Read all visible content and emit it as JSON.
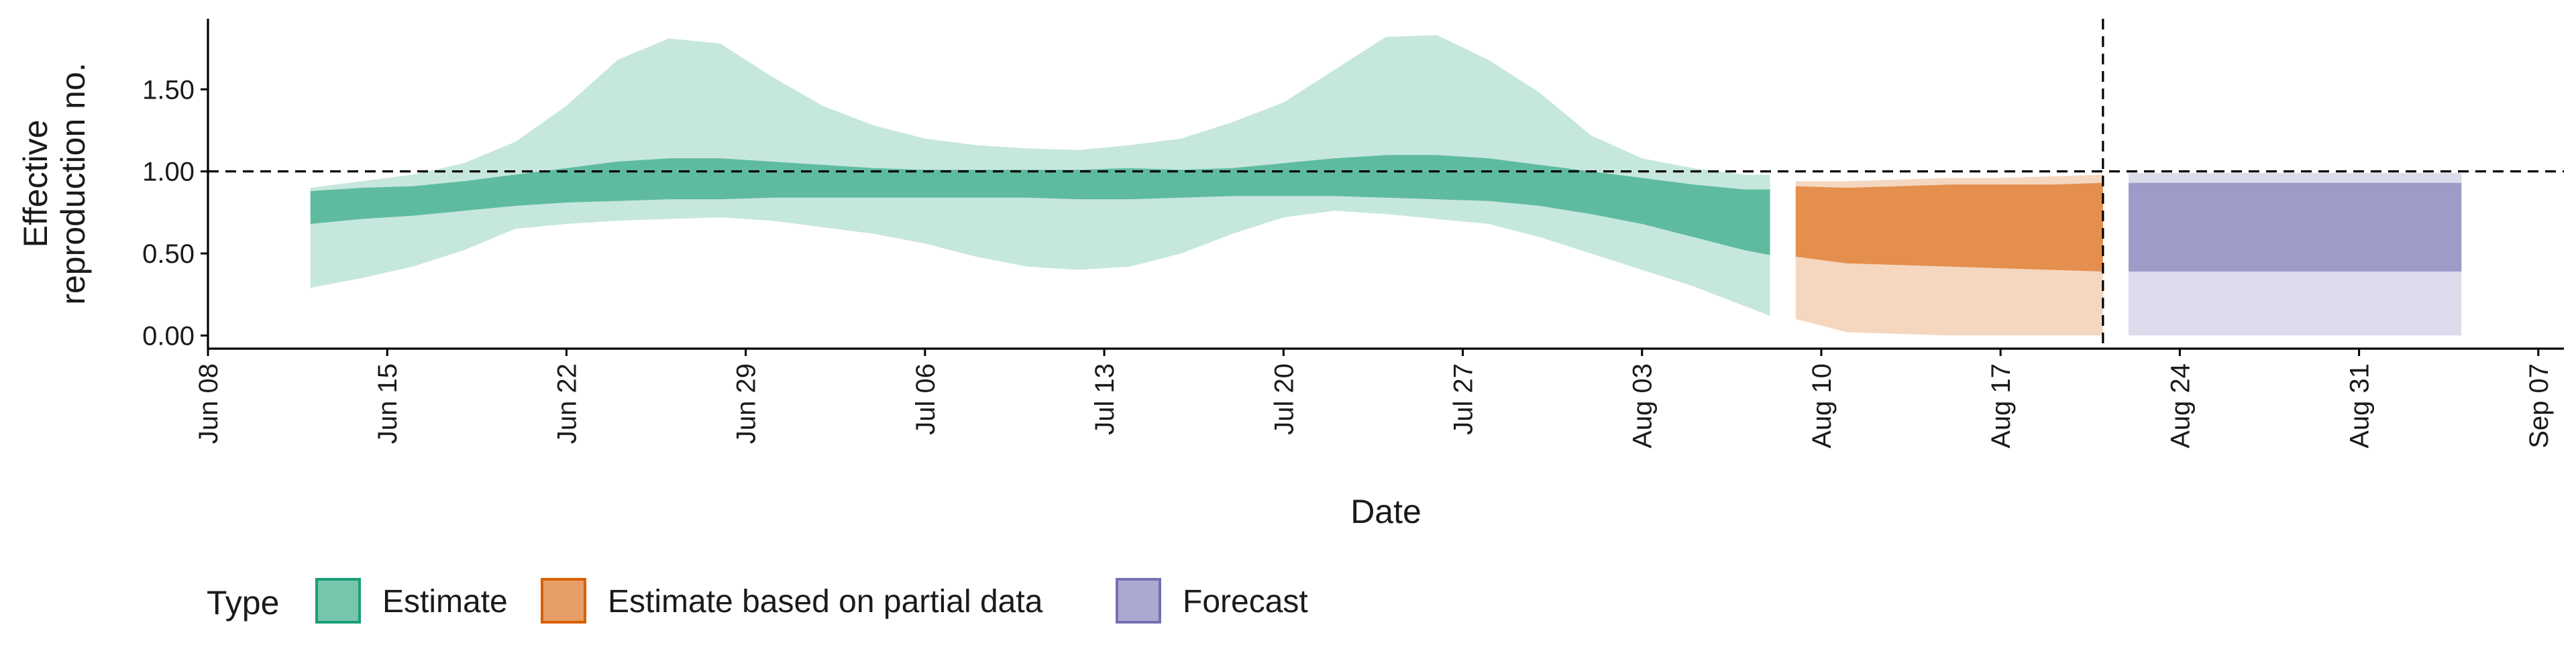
{
  "chart_data": {
    "type": "area",
    "xlabel": "Date",
    "ylabel_lines": [
      "Effective",
      "reproduction no."
    ],
    "x_ticks": [
      "Jun 08",
      "Jun 15",
      "Jun 22",
      "Jun 29",
      "Jul 06",
      "Jul 13",
      "Jul 20",
      "Jul 27",
      "Aug 03",
      "Aug 10",
      "Aug 17",
      "Aug 24",
      "Aug 31",
      "Sep 07"
    ],
    "y_ticks": [
      "0.00",
      "0.50",
      "1.00",
      "1.50"
    ],
    "xlim": [
      "2020-06-08",
      "2020-09-08"
    ],
    "ylim": [
      -0.08,
      1.93
    ],
    "reference_hline": 1.0,
    "reference_vline": "2020-08-21",
    "grid": false,
    "legend": {
      "title": "Type",
      "position": "bottom-left",
      "entries": [
        {
          "label": "Estimate",
          "color": "#1b9e77"
        },
        {
          "label": "Estimate based on partial data",
          "color": "#d95f02"
        },
        {
          "label": "Forecast",
          "color": "#7570b3"
        }
      ]
    },
    "series": [
      {
        "name": "Estimate",
        "color": "#1b9e77",
        "dates": [
          "2020-06-12",
          "2020-06-14",
          "2020-06-16",
          "2020-06-18",
          "2020-06-20",
          "2020-06-22",
          "2020-06-24",
          "2020-06-26",
          "2020-06-28",
          "2020-06-30",
          "2020-07-02",
          "2020-07-04",
          "2020-07-06",
          "2020-07-08",
          "2020-07-10",
          "2020-07-12",
          "2020-07-14",
          "2020-07-16",
          "2020-07-18",
          "2020-07-20",
          "2020-07-22",
          "2020-07-24",
          "2020-07-26",
          "2020-07-28",
          "2020-07-30",
          "2020-08-01",
          "2020-08-03",
          "2020-08-05",
          "2020-08-07",
          "2020-08-08"
        ],
        "lower_90": [
          0.29,
          0.35,
          0.42,
          0.52,
          0.65,
          0.68,
          0.7,
          0.71,
          0.72,
          0.7,
          0.66,
          0.62,
          0.56,
          0.48,
          0.42,
          0.4,
          0.42,
          0.5,
          0.62,
          0.72,
          0.76,
          0.74,
          0.71,
          0.68,
          0.6,
          0.5,
          0.4,
          0.3,
          0.18,
          0.12
        ],
        "lower_50": [
          0.68,
          0.71,
          0.73,
          0.76,
          0.79,
          0.81,
          0.82,
          0.83,
          0.83,
          0.84,
          0.84,
          0.84,
          0.84,
          0.84,
          0.84,
          0.83,
          0.83,
          0.84,
          0.85,
          0.85,
          0.85,
          0.84,
          0.83,
          0.82,
          0.79,
          0.74,
          0.68,
          0.6,
          0.52,
          0.49
        ],
        "upper_50": [
          0.88,
          0.9,
          0.91,
          0.94,
          0.98,
          1.02,
          1.06,
          1.08,
          1.08,
          1.06,
          1.04,
          1.02,
          1.01,
          1.01,
          1.01,
          1.01,
          1.02,
          1.01,
          1.02,
          1.05,
          1.08,
          1.1,
          1.1,
          1.08,
          1.04,
          1.0,
          0.96,
          0.92,
          0.89,
          0.89
        ],
        "upper_90": [
          0.9,
          0.94,
          0.98,
          1.05,
          1.18,
          1.4,
          1.68,
          1.81,
          1.78,
          1.58,
          1.4,
          1.28,
          1.2,
          1.16,
          1.14,
          1.13,
          1.16,
          1.2,
          1.3,
          1.42,
          1.62,
          1.82,
          1.83,
          1.68,
          1.48,
          1.22,
          1.08,
          1.02,
          0.98,
          0.98
        ]
      },
      {
        "name": "Estimate based on partial data",
        "color": "#d95f02",
        "dates": [
          "2020-08-09",
          "2020-08-11",
          "2020-08-13",
          "2020-08-15",
          "2020-08-17",
          "2020-08-19",
          "2020-08-21"
        ],
        "lower_90": [
          0.1,
          0.02,
          0.01,
          0.0,
          0.0,
          0.0,
          0.0
        ],
        "lower_50": [
          0.48,
          0.44,
          0.43,
          0.42,
          0.41,
          0.4,
          0.39
        ],
        "upper_50": [
          0.91,
          0.9,
          0.91,
          0.92,
          0.92,
          0.92,
          0.93
        ],
        "upper_90": [
          0.94,
          0.94,
          0.95,
          0.96,
          0.96,
          0.97,
          0.98
        ]
      },
      {
        "name": "Forecast",
        "color": "#7570b3",
        "dates": [
          "2020-08-22",
          "2020-09-04"
        ],
        "lower_90": [
          0.0,
          0.0
        ],
        "lower_50": [
          0.39,
          0.39
        ],
        "upper_50": [
          0.93,
          0.93
        ],
        "upper_90": [
          0.99,
          0.99
        ]
      }
    ]
  }
}
